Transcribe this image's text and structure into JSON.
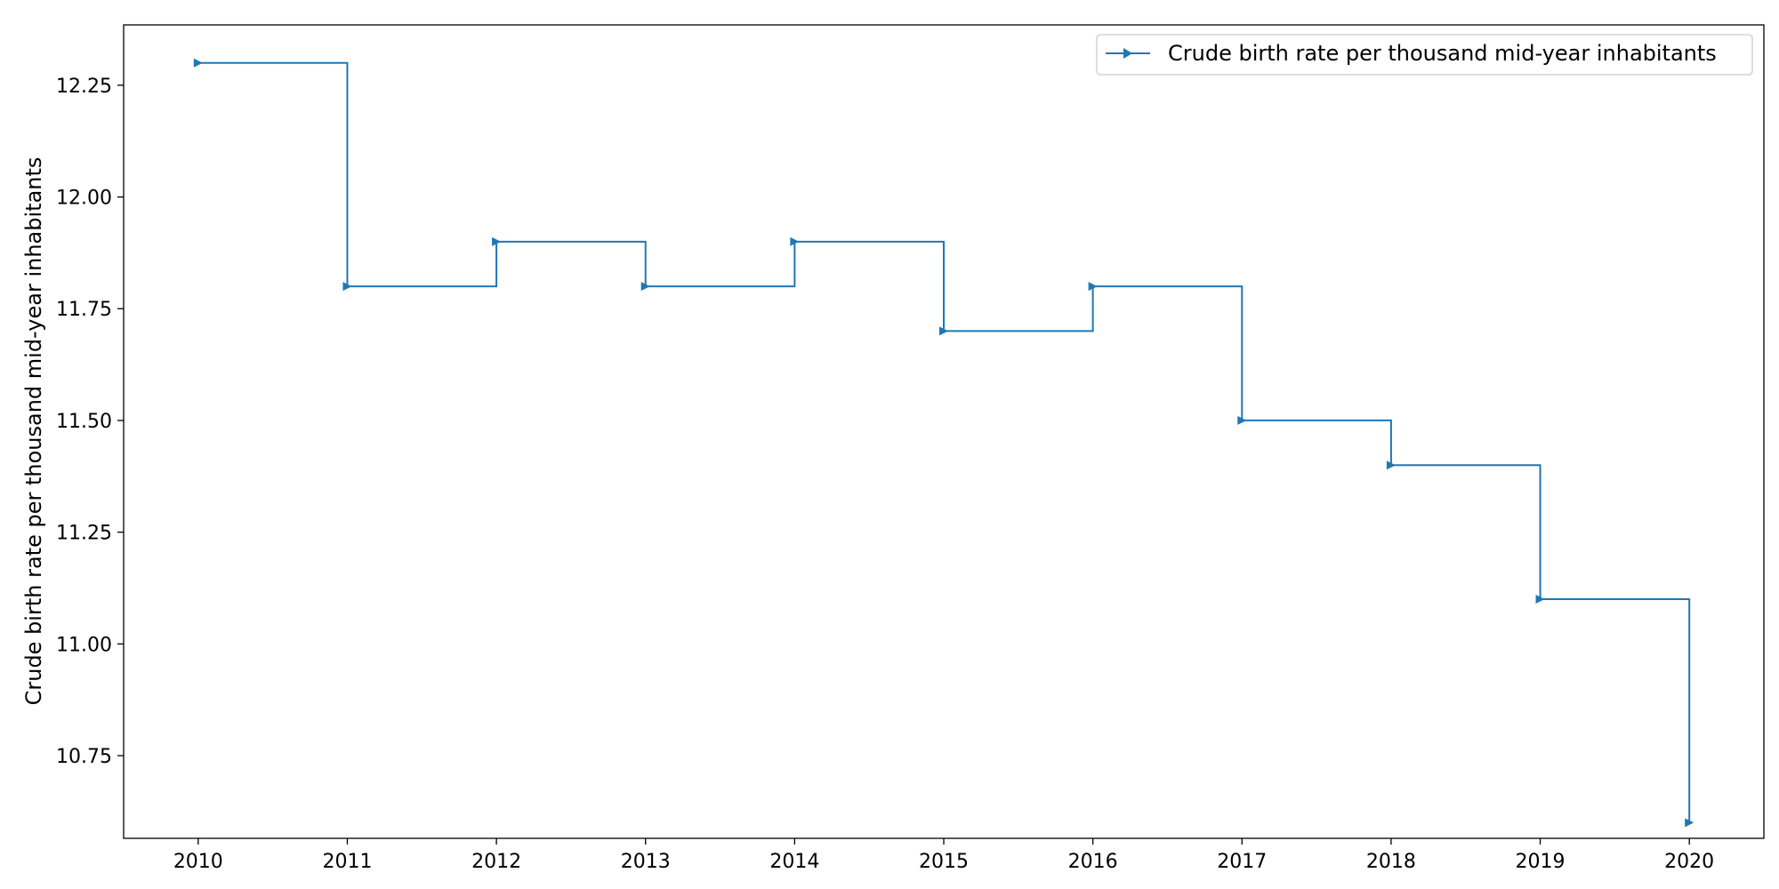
{
  "chart_data": {
    "type": "line",
    "drawstyle": "steps-post",
    "title": "",
    "xlabel": "",
    "ylabel": "Crude birth rate per thousand mid-year inhabitants",
    "x": [
      2010,
      2011,
      2012,
      2013,
      2014,
      2015,
      2016,
      2017,
      2018,
      2019,
      2020
    ],
    "series": [
      {
        "name": "Crude birth rate per thousand mid-year inhabitants",
        "color": "#1f77b4",
        "marker": "triangle-right",
        "values": [
          12.3,
          11.8,
          11.9,
          11.8,
          11.9,
          11.7,
          11.8,
          11.5,
          11.4,
          11.1,
          10.6
        ]
      }
    ],
    "xlim": [
      2009.5,
      2020.5
    ],
    "ylim": [
      10.565,
      12.385
    ],
    "xticks": [
      2010,
      2011,
      2012,
      2013,
      2014,
      2015,
      2016,
      2017,
      2018,
      2019,
      2020
    ],
    "xtick_labels": [
      "2010",
      "2011",
      "2012",
      "2013",
      "2014",
      "2015",
      "2016",
      "2017",
      "2018",
      "2019",
      "2020"
    ],
    "yticks": [
      10.75,
      11.0,
      11.25,
      11.5,
      11.75,
      12.0,
      12.25
    ],
    "ytick_labels": [
      "10.75",
      "11.00",
      "11.25",
      "11.50",
      "11.75",
      "12.00",
      "12.25"
    ],
    "grid": false,
    "legend_position": "top-right"
  }
}
